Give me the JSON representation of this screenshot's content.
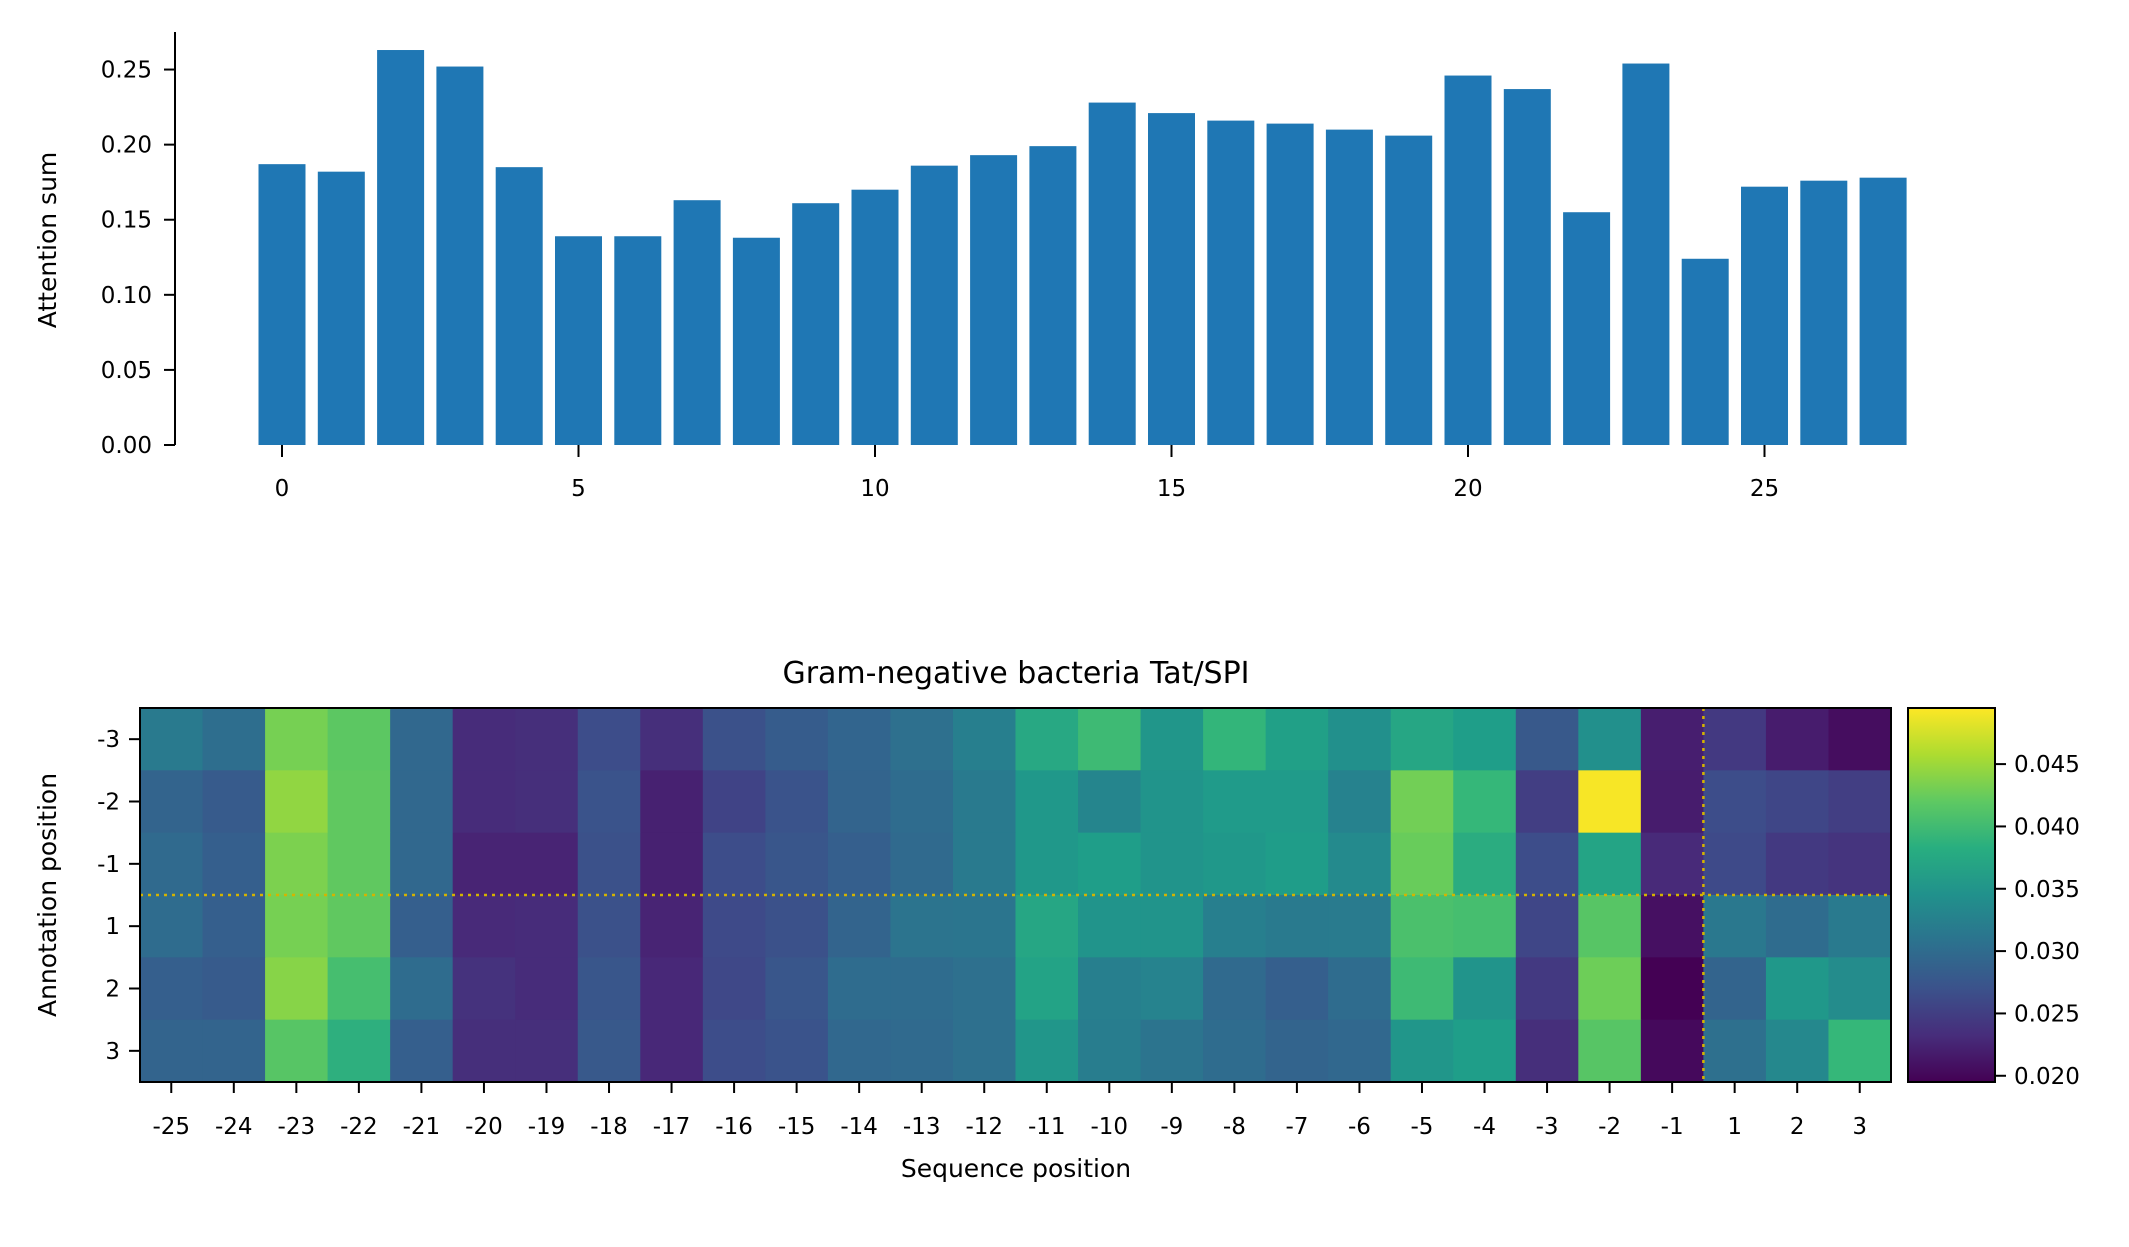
{
  "chart_data": [
    {
      "type": "bar",
      "ylabel": "Attention sum",
      "ylim": [
        0,
        0.275
      ],
      "yticks": [
        "0.00",
        "0.05",
        "0.10",
        "0.15",
        "0.20",
        "0.25"
      ],
      "xticks": [
        "0",
        "5",
        "10",
        "15",
        "20",
        "25"
      ],
      "x": [
        0,
        1,
        2,
        3,
        4,
        5,
        6,
        7,
        8,
        9,
        10,
        11,
        12,
        13,
        14,
        15,
        16,
        17,
        18,
        19,
        20,
        21,
        22,
        23,
        24,
        25,
        26,
        27
      ],
      "values": [
        0.187,
        0.182,
        0.263,
        0.252,
        0.185,
        0.139,
        0.139,
        0.163,
        0.138,
        0.161,
        0.17,
        0.186,
        0.193,
        0.199,
        0.228,
        0.221,
        0.216,
        0.214,
        0.21,
        0.206,
        0.246,
        0.237,
        0.155,
        0.254,
        0.124,
        0.172,
        0.176,
        0.178
      ],
      "color": "#1f77b4"
    },
    {
      "type": "heatmap",
      "title": "Gram-negative bacteria Tat/SPI",
      "xlabel": "Sequence position",
      "ylabel": "Annotation position",
      "colormap": "viridis",
      "x": [
        "-25",
        "-24",
        "-23",
        "-22",
        "-21",
        "-20",
        "-19",
        "-18",
        "-17",
        "-16",
        "-15",
        "-14",
        "-13",
        "-12",
        "-11",
        "-10",
        "-9",
        "-8",
        "-7",
        "-6",
        "-5",
        "-4",
        "-3",
        "-2",
        "-1",
        "1",
        "2",
        "3"
      ],
      "y": [
        "-3",
        "-2",
        "-1",
        "1",
        "2",
        "3"
      ],
      "vmin": 0.0195,
      "vmax": 0.0495,
      "colorbar_ticks": [
        "0.020",
        "0.025",
        "0.030",
        "0.035",
        "0.040",
        "0.045"
      ],
      "divider_lines": {
        "vertical_after": "-1",
        "horizontal_after": "-1",
        "color": "#d4b400",
        "style": "dotted"
      },
      "values": [
        [
          0.0318,
          0.0303,
          0.0432,
          0.0418,
          0.0295,
          0.0232,
          0.0235,
          0.0265,
          0.0235,
          0.027,
          0.0282,
          0.0292,
          0.0305,
          0.0325,
          0.0375,
          0.04,
          0.0352,
          0.0392,
          0.0365,
          0.0345,
          0.0372,
          0.0362,
          0.0278,
          0.0345,
          0.022,
          0.0245,
          0.0218,
          0.0205
        ],
        [
          0.029,
          0.028,
          0.0445,
          0.042,
          0.0295,
          0.0232,
          0.0235,
          0.0272,
          0.0222,
          0.0255,
          0.0272,
          0.029,
          0.03,
          0.0318,
          0.0355,
          0.0332,
          0.035,
          0.0358,
          0.0358,
          0.0328,
          0.043,
          0.0395,
          0.025,
          0.0492,
          0.0218,
          0.0265,
          0.0258,
          0.025
        ],
        [
          0.0298,
          0.0285,
          0.0435,
          0.042,
          0.0295,
          0.0225,
          0.0225,
          0.027,
          0.0222,
          0.0265,
          0.0275,
          0.0285,
          0.0298,
          0.0318,
          0.0355,
          0.0362,
          0.035,
          0.0355,
          0.036,
          0.0338,
          0.0425,
          0.038,
          0.0265,
          0.037,
          0.023,
          0.0262,
          0.0245,
          0.024
        ],
        [
          0.03,
          0.0285,
          0.0432,
          0.042,
          0.0285,
          0.023,
          0.0232,
          0.027,
          0.0225,
          0.0262,
          0.027,
          0.029,
          0.031,
          0.0312,
          0.0372,
          0.035,
          0.035,
          0.0325,
          0.0318,
          0.032,
          0.0408,
          0.0405,
          0.0258,
          0.0415,
          0.0208,
          0.0315,
          0.03,
          0.0318
        ],
        [
          0.0285,
          0.028,
          0.044,
          0.0405,
          0.03,
          0.0238,
          0.0232,
          0.0275,
          0.0228,
          0.026,
          0.0275,
          0.03,
          0.03,
          0.0305,
          0.0368,
          0.0325,
          0.033,
          0.0298,
          0.0285,
          0.03,
          0.04,
          0.035,
          0.0245,
          0.0428,
          0.0195,
          0.029,
          0.0355,
          0.034
        ],
        [
          0.029,
          0.029,
          0.0415,
          0.0385,
          0.0285,
          0.0235,
          0.0235,
          0.0278,
          0.0228,
          0.0265,
          0.0272,
          0.0295,
          0.0298,
          0.0305,
          0.0352,
          0.0322,
          0.031,
          0.03,
          0.029,
          0.0295,
          0.0352,
          0.0362,
          0.0235,
          0.0415,
          0.0202,
          0.0305,
          0.0335,
          0.0395
        ]
      ]
    }
  ]
}
